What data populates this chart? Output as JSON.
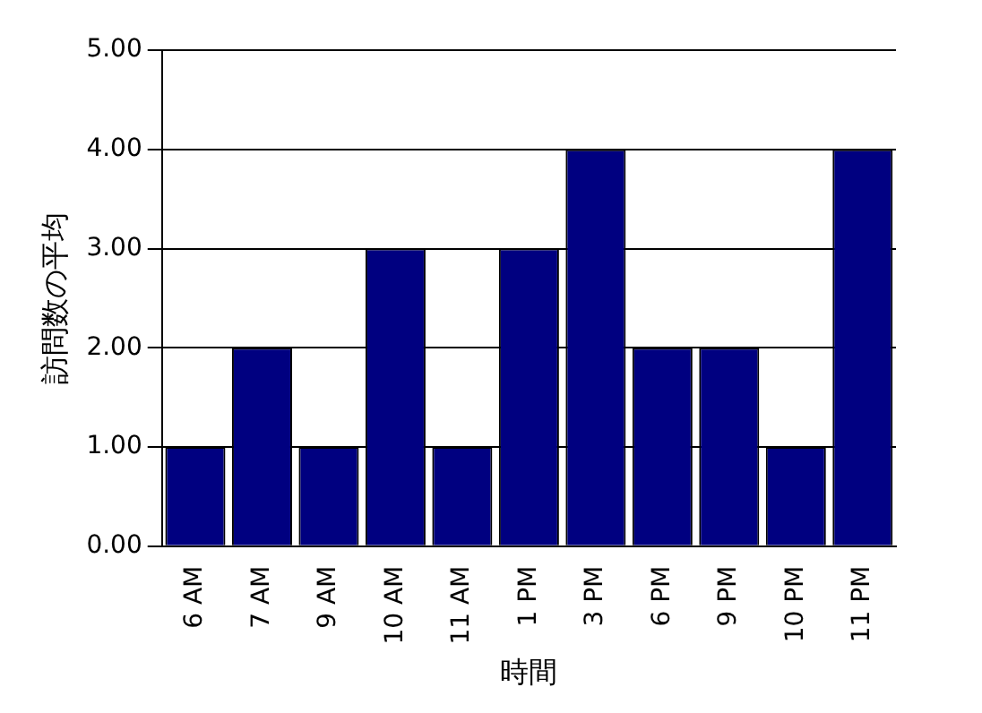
{
  "chart_data": {
    "type": "bar",
    "xlabel": "時間",
    "ylabel": "訪問数の平均",
    "categories": [
      "6 AM",
      "7 AM",
      "9 AM",
      "10 AM",
      "11 AM",
      "1 PM",
      "3 PM",
      "6 PM",
      "9 PM",
      "10 PM",
      "11 PM"
    ],
    "values": [
      1,
      2,
      1,
      3,
      1,
      3,
      4,
      2,
      2,
      1,
      4
    ],
    "color": "#000080",
    "ylim": [
      0,
      5
    ],
    "yticks": [
      {
        "value": 0,
        "label": "0.00"
      },
      {
        "value": 1,
        "label": "1.00"
      },
      {
        "value": 2,
        "label": "2.00"
      },
      {
        "value": 3,
        "label": "3.00"
      },
      {
        "value": 4,
        "label": "4.00"
      },
      {
        "value": 5,
        "label": "5.00"
      }
    ],
    "grid": "y"
  }
}
